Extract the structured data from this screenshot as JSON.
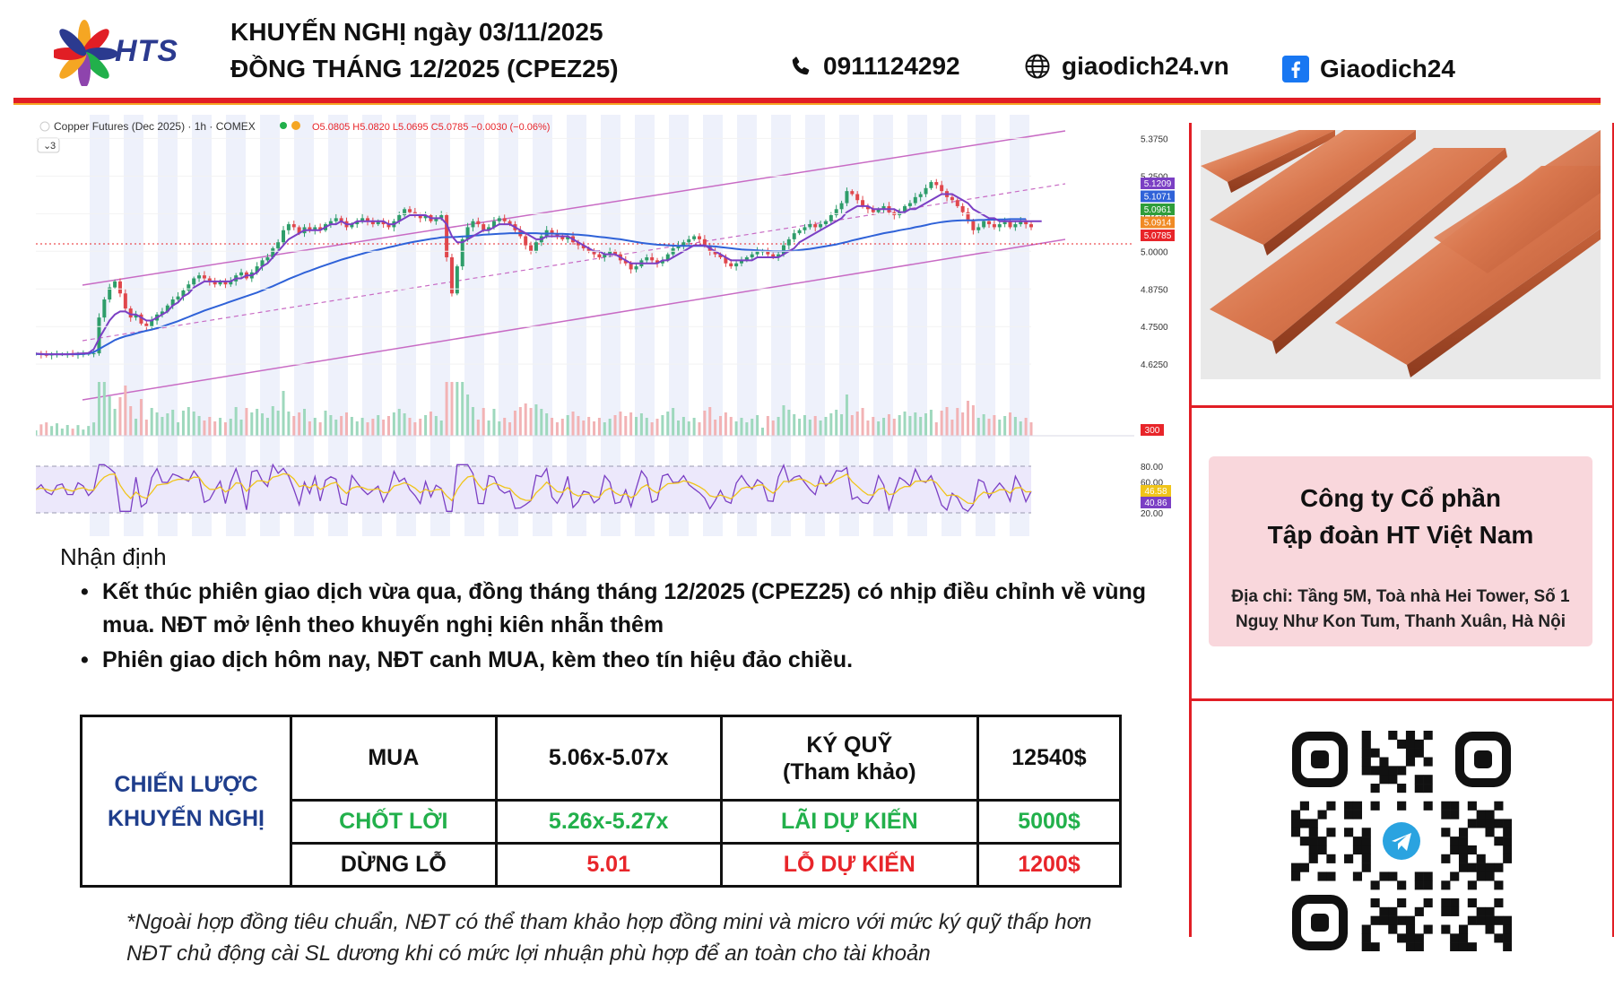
{
  "brand": {
    "name": "HTS"
  },
  "header": {
    "title_line1": "KHUYẾN NGHỊ ngày 03/11/2025",
    "title_line2": "ĐỒNG THÁNG 12/2025 (CPEZ25)",
    "phone": "0911124292",
    "website": "giaodich24.vn",
    "facebook": "Giaodich24"
  },
  "chart_data": {
    "type": "candlestick",
    "instrument": "Copper Futures (Dec 2025) · 1h · COMEX",
    "ohlc": "O5.0805  H5.0820  L5.0695  C5.0785  −0.0030 (−0.06%)",
    "indicator_count": "3",
    "price_axis_ticks": [
      "5.3750",
      "5.2500",
      "5.1250",
      "5.0000",
      "4.8750",
      "4.7500",
      "4.6250"
    ],
    "ylim": [
      4.56,
      5.4
    ],
    "price_labels": [
      {
        "value": "5.1209",
        "color": "#7b3fc4"
      },
      {
        "value": "5.1071",
        "color": "#2f62d8"
      },
      {
        "value": "5.0961",
        "color": "#2e9d3a"
      },
      {
        "value": "5.0914",
        "color": "#f08a24"
      },
      {
        "value": "5.0785",
        "color": "#e8252a"
      }
    ],
    "volume_label": "300",
    "rsi_axis_ticks": [
      "80.00",
      "60.00",
      "20.00"
    ],
    "rsi_labels": [
      {
        "value": "46.58",
        "color": "#f0c419"
      },
      {
        "value": "40.86",
        "color": "#7b3fc4"
      }
    ],
    "close_series": [
      4.659,
      4.656,
      4.655,
      4.657,
      4.658,
      4.658,
      4.658,
      4.657,
      4.658,
      4.659,
      4.66,
      4.661,
      4.78,
      4.84,
      4.88,
      4.9,
      4.86,
      4.81,
      4.78,
      4.79,
      4.76,
      4.75,
      4.77,
      4.79,
      4.8,
      4.82,
      4.84,
      4.85,
      4.87,
      4.89,
      4.91,
      4.92,
      4.91,
      4.9,
      4.89,
      4.9,
      4.89,
      4.9,
      4.92,
      4.93,
      4.91,
      4.93,
      4.95,
      4.97,
      4.98,
      5.01,
      5.03,
      5.07,
      5.09,
      5.08,
      5.06,
      5.08,
      5.07,
      5.08,
      5.07,
      5.09,
      5.1,
      5.11,
      5.1,
      5.08,
      5.09,
      5.1,
      5.11,
      5.1,
      5.09,
      5.1,
      5.09,
      5.08,
      5.1,
      5.12,
      5.14,
      5.13,
      5.12,
      5.11,
      5.12,
      5.1,
      5.11,
      5.12,
      4.98,
      4.86,
      4.95,
      5.04,
      5.08,
      5.1,
      5.09,
      5.07,
      5.08,
      5.1,
      5.11,
      5.1,
      5.09,
      5.07,
      5.05,
      5.02,
      5.0,
      5.03,
      5.05,
      5.07,
      5.06,
      5.05,
      5.04,
      5.05,
      5.03,
      5.02,
      5.01,
      5.0,
      4.99,
      4.98,
      4.99,
      5.0,
      4.99,
      4.97,
      4.96,
      4.94,
      4.95,
      4.97,
      4.98,
      4.97,
      4.96,
      4.97,
      4.99,
      5.01,
      5.02,
      5.03,
      5.04,
      5.05,
      5.04,
      5.02,
      5.0,
      4.99,
      4.98,
      4.96,
      4.95,
      4.96,
      4.97,
      4.98,
      4.99,
      5.0,
      5.0,
      4.99,
      4.98,
      4.99,
      5.02,
      5.04,
      5.06,
      5.07,
      5.08,
      5.09,
      5.08,
      5.09,
      5.1,
      5.12,
      5.14,
      5.16,
      5.2,
      5.19,
      5.17,
      5.15,
      5.14,
      5.13,
      5.14,
      5.15,
      5.13,
      5.12,
      5.13,
      5.15,
      5.16,
      5.18,
      5.19,
      5.21,
      5.23,
      5.22,
      5.2,
      5.18,
      5.17,
      5.15,
      5.13,
      5.1,
      5.07,
      5.08,
      5.1,
      5.09,
      5.08,
      5.09,
      5.1,
      5.08,
      5.09,
      5.1,
      5.09,
      5.08
    ],
    "sma_fast": [
      4.66,
      4.659,
      4.658,
      4.658,
      4.658,
      4.658,
      4.658,
      4.659,
      4.66,
      4.661,
      4.662,
      4.675,
      4.71,
      4.74,
      4.77,
      4.79,
      4.8,
      4.8,
      4.79,
      4.79,
      4.78,
      4.77,
      4.77,
      4.78,
      4.79,
      4.8,
      4.82,
      4.83,
      4.85,
      4.86,
      4.88,
      4.89,
      4.9,
      4.9,
      4.9,
      4.9,
      4.9,
      4.9,
      4.91,
      4.91,
      4.92,
      4.92,
      4.93,
      4.95,
      4.96,
      4.98,
      5.0,
      5.02,
      5.04,
      5.05,
      5.06,
      5.07,
      5.07,
      5.07,
      5.07,
      5.08,
      5.09,
      5.09,
      5.1,
      5.09,
      5.09,
      5.1,
      5.1,
      5.1,
      5.1,
      5.1,
      5.1,
      5.09,
      5.09,
      5.1,
      5.11,
      5.12,
      5.12,
      5.12,
      5.12,
      5.11,
      5.11,
      5.11,
      5.09,
      5.05,
      5.03,
      5.03,
      5.04,
      5.05,
      5.06,
      5.07,
      5.07,
      5.08,
      5.09,
      5.09,
      5.09,
      5.08,
      5.07,
      5.06,
      5.05,
      5.04,
      5.04,
      5.05,
      5.05,
      5.05,
      5.05,
      5.05,
      5.04,
      5.03,
      5.02,
      5.01,
      5.0,
      5.0,
      4.99,
      4.99,
      4.99,
      4.98,
      4.97,
      4.96,
      4.96,
      4.96,
      4.96,
      4.96,
      4.96,
      4.97,
      4.97,
      4.98,
      4.99,
      5.0,
      5.01,
      5.02,
      5.02,
      5.02,
      5.01,
      5.0,
      4.99,
      4.98,
      4.97,
      4.97,
      4.97,
      4.97,
      4.97,
      4.98,
      4.98,
      4.98,
      4.98,
      4.98,
      4.99,
      5.0,
      5.01,
      5.03,
      5.04,
      5.05,
      5.06,
      5.07,
      5.08,
      5.09,
      5.1,
      5.11,
      5.13,
      5.14,
      5.15,
      5.15,
      5.15,
      5.14,
      5.14,
      5.14,
      5.14,
      5.14,
      5.13,
      5.13,
      5.14,
      5.14,
      5.15,
      5.16,
      5.17,
      5.18,
      5.19,
      5.19,
      5.19,
      5.18,
      5.17,
      5.16,
      5.14,
      5.13,
      5.12,
      5.11,
      5.11,
      5.1,
      5.1,
      5.1,
      5.1,
      5.1,
      5.1,
      5.1,
      5.1,
      5.1
    ],
    "sma_slow": [
      4.659,
      4.658,
      4.658,
      4.658,
      4.658,
      4.658,
      4.658,
      4.658,
      4.658,
      4.659,
      4.66,
      4.665,
      4.675,
      4.685,
      4.695,
      4.705,
      4.712,
      4.718,
      4.722,
      4.727,
      4.732,
      4.736,
      4.74,
      4.745,
      4.75,
      4.756,
      4.762,
      4.768,
      4.775,
      4.782,
      4.789,
      4.796,
      4.803,
      4.809,
      4.815,
      4.821,
      4.827,
      4.833,
      4.839,
      4.845,
      4.851,
      4.857,
      4.863,
      4.87,
      4.877,
      4.884,
      4.892,
      4.9,
      4.908,
      4.915,
      4.922,
      4.929,
      4.935,
      4.942,
      4.948,
      4.954,
      4.96,
      4.966,
      4.972,
      4.977,
      4.982,
      4.987,
      4.992,
      4.997,
      5.001,
      5.005,
      5.009,
      5.013,
      5.017,
      5.021,
      5.025,
      5.029,
      5.032,
      5.035,
      5.038,
      5.041,
      5.043,
      5.046,
      5.047,
      5.047,
      5.048,
      5.049,
      5.05,
      5.052,
      5.053,
      5.055,
      5.056,
      5.057,
      5.058,
      5.059,
      5.06,
      5.06,
      5.06,
      5.06,
      5.06,
      5.06,
      5.059,
      5.059,
      5.059,
      5.058,
      5.058,
      5.057,
      5.056,
      5.055,
      5.054,
      5.052,
      5.05,
      5.048,
      5.046,
      5.044,
      5.042,
      5.04,
      5.037,
      5.034,
      5.031,
      5.028,
      5.026,
      5.024,
      5.022,
      5.021,
      5.02,
      5.019,
      5.018,
      5.018,
      5.018,
      5.018,
      5.018,
      5.018,
      5.017,
      5.016,
      5.014,
      5.012,
      5.01,
      5.008,
      5.006,
      5.005,
      5.004,
      5.003,
      5.002,
      5.001,
      5.0,
      5.0,
      5.0,
      5.001,
      5.002,
      5.004,
      5.006,
      5.008,
      5.011,
      5.014,
      5.017,
      5.02,
      5.023,
      5.027,
      5.031,
      5.036,
      5.04,
      5.044,
      5.048,
      5.052,
      5.056,
      5.06,
      5.063,
      5.066,
      5.07,
      5.073,
      5.076,
      5.08,
      5.083,
      5.087,
      5.091,
      5.094,
      5.097,
      5.099,
      5.101,
      5.102,
      5.103,
      5.103,
      5.103,
      5.104,
      5.104,
      5.105,
      5.105,
      5.106,
      5.106,
      5.107,
      5.107,
      5.107,
      5.107
    ]
  },
  "analysis": {
    "heading": "Nhận định",
    "bullets": [
      "Kết thúc phiên giao dịch vừa qua, đồng tháng tháng 12/2025 (CPEZ25) có nhịp điều chỉnh về vùng mua. NĐT mở lệnh theo khuyến nghị kiên nhẫn thêm",
      "Phiên giao dịch hôm nay, NĐT canh MUA, kèm theo tín hiệu đảo chiều."
    ]
  },
  "strategy": {
    "label_line1": "CHIẾN LƯỢC",
    "label_line2": "KHUYẾN NGHỊ",
    "rows": [
      {
        "action": "MUA",
        "price": "5.06x-5.07x",
        "metric_line1": "KÝ QUỸ",
        "metric_line2": "(Tham khảo)",
        "amount": "12540$"
      },
      {
        "action": "CHỐT LỜI",
        "price": "5.26x-5.27x",
        "metric_line1": "LÃI DỰ KIẾN",
        "amount": "5000$"
      },
      {
        "action": "DỪNG LỖ",
        "price": "5.01",
        "metric_line1": "LỖ DỰ KIẾN",
        "amount": "1200$"
      }
    ]
  },
  "footnotes": [
    "*Ngoài hợp đồng tiêu chuẩn, NĐT có thể tham khảo hợp đồng mini và micro với mức ký quỹ thấp hơn",
    "NĐT chủ động cài SL dương khi có mức lợi nhuận phù hợp để an toàn cho tài khoản"
  ],
  "company": {
    "name_line1": "Công ty Cổ phần",
    "name_line2": "Tập đoàn HT Việt Nam",
    "address": "Địa chỉ: Tầng 5M, Toà nhà Hei Tower, Số 1 Nguỵ Như Kon Tum, Thanh Xuân, Hà Nội"
  },
  "icons": {
    "phone": "phone-icon",
    "web": "globe-icon",
    "facebook": "facebook-icon",
    "qr": "qr-code",
    "qr_badge": "telegram-icon"
  },
  "colors": {
    "accent_red": "#e11e25",
    "brand_blue": "#1f3e8c",
    "profit_green": "#22b04b",
    "loss_red": "#e8252a",
    "card_pink": "#f9d7dc"
  }
}
